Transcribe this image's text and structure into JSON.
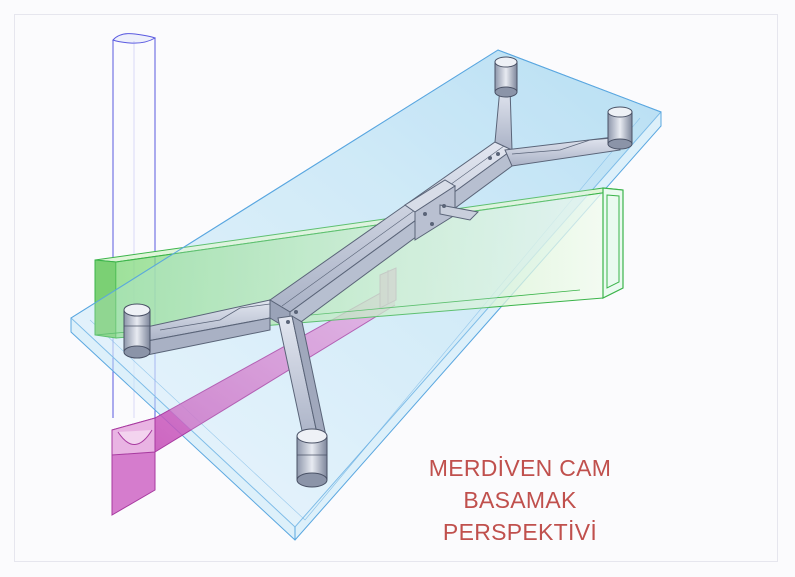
{
  "caption": {
    "line1": "MERDİVEN CAM BASAMAK",
    "line2": "PERSPEKTİVİ"
  },
  "colors": {
    "glass": "#7fc4e8",
    "beam": "#7fd97f",
    "beam_stroke": "#3bb44a",
    "support": "#c24fb8",
    "steel": "#c4cbdc",
    "steel_stroke": "#5a6478",
    "post": "#6a6ae0",
    "caption": "#c0504d"
  }
}
